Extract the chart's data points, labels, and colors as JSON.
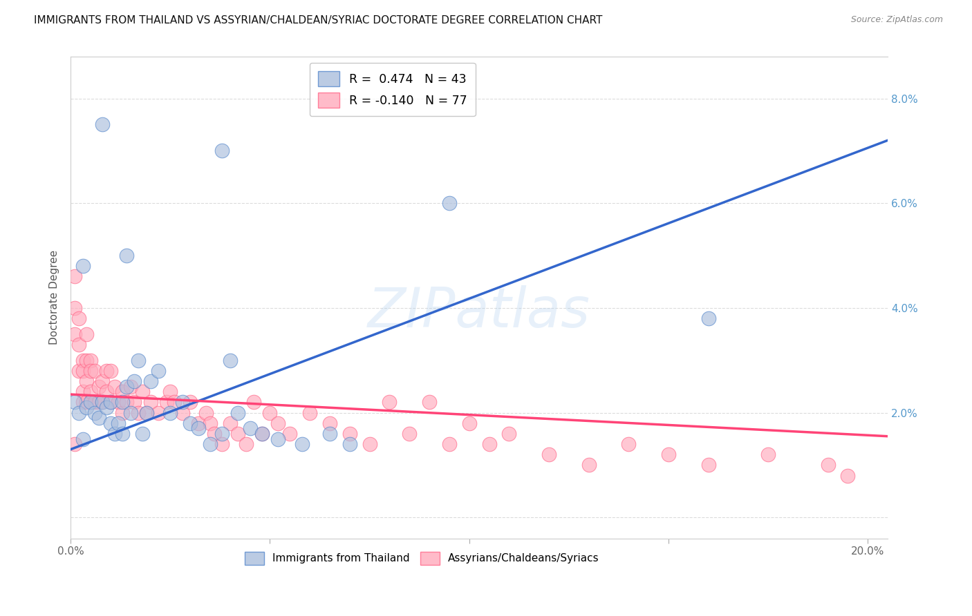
{
  "title": "IMMIGRANTS FROM THAILAND VS ASSYRIAN/CHALDEAN/SYRIAC DOCTORATE DEGREE CORRELATION CHART",
  "source": "Source: ZipAtlas.com",
  "ylabel": "Doctorate Degree",
  "xlim": [
    0.0,
    0.205
  ],
  "ylim": [
    -0.004,
    0.088
  ],
  "xticks": [
    0.0,
    0.05,
    0.1,
    0.15,
    0.2
  ],
  "xticklabels": [
    "0.0%",
    "",
    "",
    "",
    "20.0%"
  ],
  "yticks": [
    0.0,
    0.02,
    0.04,
    0.06,
    0.08
  ],
  "yticklabels_right": [
    "",
    "2.0%",
    "4.0%",
    "6.0%",
    "8.0%"
  ],
  "legend_r_blue": "0.474",
  "legend_n_blue": "43",
  "legend_r_pink": "-0.140",
  "legend_n_pink": "77",
  "blue_fill": "#AABEDD",
  "blue_edge": "#5588CC",
  "pink_fill": "#FFAABC",
  "pink_edge": "#FF6688",
  "line_blue": "#3366CC",
  "line_pink": "#FF4477",
  "watermark": "ZIPatlas",
  "blue_line_x": [
    0.0,
    0.205
  ],
  "blue_line_y": [
    0.013,
    0.072
  ],
  "pink_line_x": [
    0.0,
    0.205
  ],
  "pink_line_y": [
    0.0235,
    0.0155
  ],
  "blue_points": [
    [
      0.001,
      0.022
    ],
    [
      0.002,
      0.02
    ],
    [
      0.004,
      0.021
    ],
    [
      0.005,
      0.022
    ],
    [
      0.006,
      0.02
    ],
    [
      0.007,
      0.019
    ],
    [
      0.008,
      0.022
    ],
    [
      0.009,
      0.021
    ],
    [
      0.01,
      0.022
    ],
    [
      0.01,
      0.018
    ],
    [
      0.011,
      0.016
    ],
    [
      0.012,
      0.018
    ],
    [
      0.013,
      0.022
    ],
    [
      0.013,
      0.016
    ],
    [
      0.014,
      0.025
    ],
    [
      0.015,
      0.02
    ],
    [
      0.016,
      0.026
    ],
    [
      0.017,
      0.03
    ],
    [
      0.018,
      0.016
    ],
    [
      0.019,
      0.02
    ],
    [
      0.02,
      0.026
    ],
    [
      0.022,
      0.028
    ],
    [
      0.025,
      0.02
    ],
    [
      0.028,
      0.022
    ],
    [
      0.03,
      0.018
    ],
    [
      0.032,
      0.017
    ],
    [
      0.035,
      0.014
    ],
    [
      0.038,
      0.016
    ],
    [
      0.04,
      0.03
    ],
    [
      0.042,
      0.02
    ],
    [
      0.045,
      0.017
    ],
    [
      0.048,
      0.016
    ],
    [
      0.052,
      0.015
    ],
    [
      0.058,
      0.014
    ],
    [
      0.065,
      0.016
    ],
    [
      0.07,
      0.014
    ],
    [
      0.095,
      0.06
    ],
    [
      0.16,
      0.038
    ],
    [
      0.008,
      0.075
    ],
    [
      0.038,
      0.07
    ],
    [
      0.003,
      0.048
    ],
    [
      0.014,
      0.05
    ],
    [
      0.003,
      0.015
    ]
  ],
  "pink_points": [
    [
      0.001,
      0.046
    ],
    [
      0.001,
      0.04
    ],
    [
      0.001,
      0.035
    ],
    [
      0.002,
      0.033
    ],
    [
      0.002,
      0.038
    ],
    [
      0.002,
      0.028
    ],
    [
      0.003,
      0.03
    ],
    [
      0.003,
      0.028
    ],
    [
      0.003,
      0.024
    ],
    [
      0.003,
      0.022
    ],
    [
      0.004,
      0.035
    ],
    [
      0.004,
      0.03
    ],
    [
      0.004,
      0.026
    ],
    [
      0.004,
      0.022
    ],
    [
      0.005,
      0.03
    ],
    [
      0.005,
      0.028
    ],
    [
      0.005,
      0.024
    ],
    [
      0.006,
      0.022
    ],
    [
      0.006,
      0.028
    ],
    [
      0.007,
      0.025
    ],
    [
      0.007,
      0.022
    ],
    [
      0.008,
      0.026
    ],
    [
      0.008,
      0.022
    ],
    [
      0.009,
      0.028
    ],
    [
      0.009,
      0.024
    ],
    [
      0.01,
      0.028
    ],
    [
      0.01,
      0.022
    ],
    [
      0.011,
      0.025
    ],
    [
      0.012,
      0.022
    ],
    [
      0.013,
      0.024
    ],
    [
      0.013,
      0.02
    ],
    [
      0.014,
      0.022
    ],
    [
      0.015,
      0.025
    ],
    [
      0.016,
      0.022
    ],
    [
      0.017,
      0.02
    ],
    [
      0.018,
      0.024
    ],
    [
      0.019,
      0.02
    ],
    [
      0.02,
      0.022
    ],
    [
      0.022,
      0.02
    ],
    [
      0.024,
      0.022
    ],
    [
      0.025,
      0.024
    ],
    [
      0.026,
      0.022
    ],
    [
      0.028,
      0.02
    ],
    [
      0.03,
      0.022
    ],
    [
      0.032,
      0.018
    ],
    [
      0.034,
      0.02
    ],
    [
      0.035,
      0.018
    ],
    [
      0.036,
      0.016
    ],
    [
      0.038,
      0.014
    ],
    [
      0.04,
      0.018
    ],
    [
      0.042,
      0.016
    ],
    [
      0.044,
      0.014
    ],
    [
      0.046,
      0.022
    ],
    [
      0.048,
      0.016
    ],
    [
      0.05,
      0.02
    ],
    [
      0.052,
      0.018
    ],
    [
      0.055,
      0.016
    ],
    [
      0.06,
      0.02
    ],
    [
      0.065,
      0.018
    ],
    [
      0.07,
      0.016
    ],
    [
      0.075,
      0.014
    ],
    [
      0.08,
      0.022
    ],
    [
      0.085,
      0.016
    ],
    [
      0.09,
      0.022
    ],
    [
      0.095,
      0.014
    ],
    [
      0.1,
      0.018
    ],
    [
      0.105,
      0.014
    ],
    [
      0.11,
      0.016
    ],
    [
      0.12,
      0.012
    ],
    [
      0.13,
      0.01
    ],
    [
      0.14,
      0.014
    ],
    [
      0.15,
      0.012
    ],
    [
      0.16,
      0.01
    ],
    [
      0.175,
      0.012
    ],
    [
      0.19,
      0.01
    ],
    [
      0.195,
      0.008
    ],
    [
      0.001,
      0.014
    ]
  ]
}
